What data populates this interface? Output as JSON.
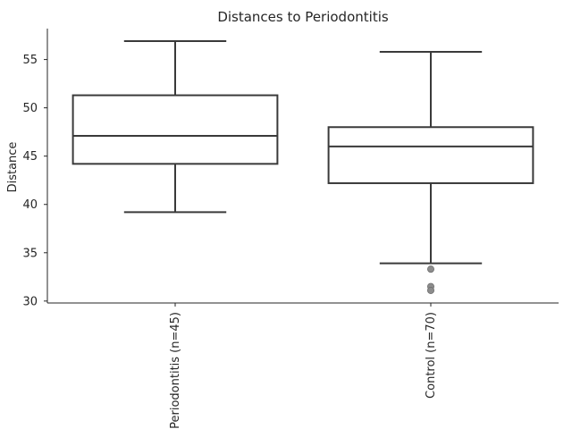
{
  "chart_data": {
    "type": "box",
    "title": "Distances to Periodontitis",
    "xlabel": "",
    "ylabel": "Distance",
    "ylim": [
      29.8,
      58.2
    ],
    "yticks": [
      30,
      35,
      40,
      45,
      50,
      55
    ],
    "grid": false,
    "box_color": "#ffffff",
    "line_color": "#3a3a3a",
    "outlier_color": "#8c8c8c",
    "categories": [
      "Periodontitis (n=45)",
      "Control (n=70)"
    ],
    "boxes": [
      {
        "label": "Periodontitis (n=45)",
        "whisker_low": 39.2,
        "q1": 44.2,
        "median": 47.1,
        "q3": 51.3,
        "whisker_high": 56.9,
        "outliers": []
      },
      {
        "label": "Control (n=70)",
        "whisker_low": 33.9,
        "q1": 42.2,
        "median": 46.0,
        "q3": 48.0,
        "whisker_high": 55.8,
        "outliers": [
          33.3,
          31.5,
          31.1
        ]
      }
    ]
  }
}
